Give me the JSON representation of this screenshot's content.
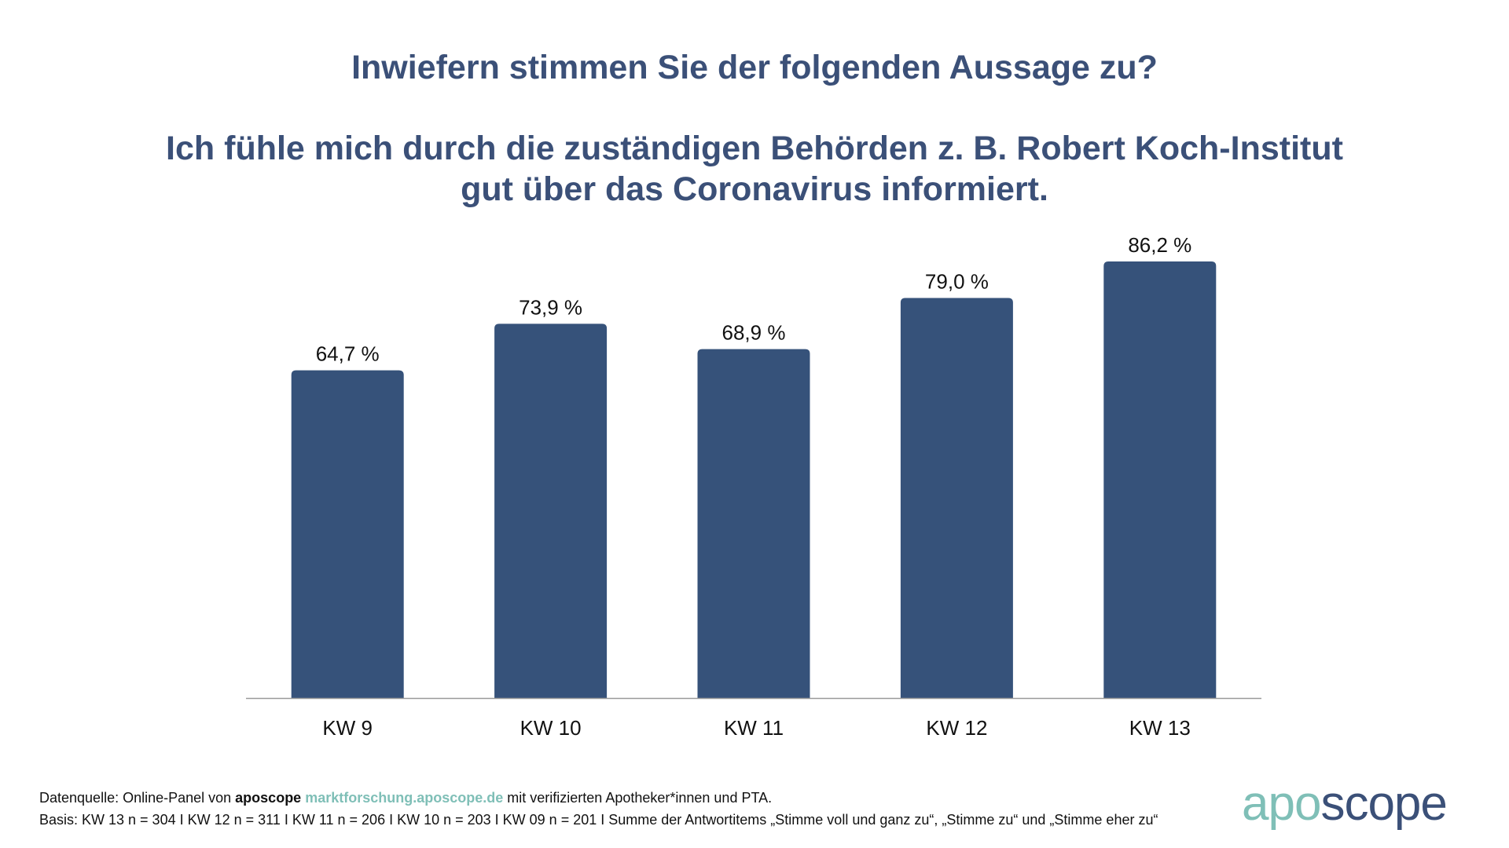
{
  "chart_data": {
    "type": "bar",
    "title": "Inwiefern stimmen Sie der folgenden Aussage zu?",
    "subtitle_lines": [
      "Ich fühle mich durch die zuständigen Behörden z. B. Robert Koch-Institut",
      "gut über das Coronavirus informiert."
    ],
    "categories": [
      "KW 9",
      "KW 10",
      "KW 11",
      "KW 12",
      "KW 13"
    ],
    "values": [
      64.7,
      73.9,
      68.9,
      79.0,
      86.2
    ],
    "data_labels": [
      "64,7 %",
      "73,9 %",
      "68,9 %",
      "79,0 %",
      "86,2 %"
    ],
    "xlabel": "",
    "ylabel": "",
    "ylim": [
      0,
      100
    ],
    "grid": false,
    "bar_color": "#36527a"
  },
  "footer": {
    "line1_prefix": "Datenquelle: Online-Panel von ",
    "line1_brand": "aposcope",
    "line1_link": "marktforschung.aposcope.de",
    "line1_suffix": " mit verifizierten Apotheker*innen und PTA.",
    "line2": "Basis: KW 13 n = 304 I KW 12 n = 311 I KW 11 n = 206 I KW 10 n = 203 I KW 09 n = 201 I Summe der Antwortitems „Stimme voll und ganz zu“, „Stimme zu“ und „Stimme eher zu“"
  },
  "logo": {
    "part1": "apo",
    "part2": "scope",
    "color1": "#7fbfb7",
    "color2": "#3b5078"
  }
}
